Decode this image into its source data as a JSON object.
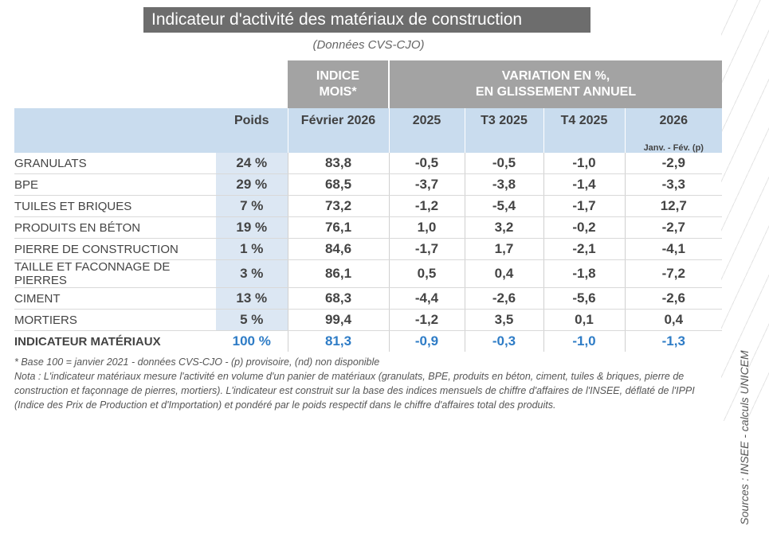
{
  "title": "Indicateur d'activité des matériaux de construction",
  "subtitle": "(Données CVS-CJO)",
  "source": "Sources : INSEE - calculs UNICEM",
  "header": {
    "indice_line1": "INDICE",
    "indice_line2": "MOIS*",
    "variation_line1": "VARIATION EN %,",
    "variation_line2": "EN GLISSEMENT ANNUEL",
    "col_poids": "Poids",
    "col_mois": "Février 2026",
    "col_2025": "2025",
    "col_t3": "T3 2025",
    "col_t4": "T4 2025",
    "col_2026": "2026",
    "col_2026_sub": "Janv. - Fév. (p)"
  },
  "rows": [
    {
      "label": "GRANULATS",
      "poids": "24 %",
      "indice": "83,8",
      "v2025": "-0,5",
      "t3": "-0,5",
      "t4": "-1,0",
      "v2026": "-2,9"
    },
    {
      "label": "BPE",
      "poids": "29 %",
      "indice": "68,5",
      "v2025": "-3,7",
      "t3": "-3,8",
      "t4": "-1,4",
      "v2026": "-3,3"
    },
    {
      "label": "TUILES ET BRIQUES",
      "poids": "7 %",
      "indice": "73,2",
      "v2025": "-1,2",
      "t3": "-5,4",
      "t4": "-1,7",
      "v2026": "12,7"
    },
    {
      "label": "PRODUITS EN BÉTON",
      "poids": "19 %",
      "indice": "76,1",
      "v2025": "1,0",
      "t3": "3,2",
      "t4": "-0,2",
      "v2026": "-2,7"
    },
    {
      "label": "PIERRE DE CONSTRUCTION",
      "poids": "1 %",
      "indice": "84,6",
      "v2025": "-1,7",
      "t3": "1,7",
      "t4": "-2,1",
      "v2026": "-4,1"
    },
    {
      "label": "TAILLE ET FACONNAGE DE PIERRES",
      "poids": "3 %",
      "indice": "86,1",
      "v2025": "0,5",
      "t3": "0,4",
      "t4": "-1,8",
      "v2026": "-7,2"
    },
    {
      "label": "CIMENT",
      "poids": "13 %",
      "indice": "68,3",
      "v2025": "-4,4",
      "t3": "-2,6",
      "t4": "-5,6",
      "v2026": "-2,6"
    },
    {
      "label": "MORTIERS",
      "poids": "5 %",
      "indice": "99,4",
      "v2025": "-1,2",
      "t3": "3,5",
      "t4": "0,1",
      "v2026": "0,4"
    }
  ],
  "total": {
    "label": "INDICATEUR MATÉRIAUX",
    "poids": "100 %",
    "indice": "81,3",
    "v2025": "-0,9",
    "t3": "-0,3",
    "t4": "-1,0",
    "v2026": "-1,3"
  },
  "notes": {
    "base": "* Base 100 = janvier 2021 - données CVS-CJO - (p) provisoire, (nd) non disponible",
    "nota": "Nota :  L'indicateur matériaux mesure l'activité en volume d'un panier de matériaux (granulats, BPE, produits en béton, ciment, tuiles & briques, pierre de construction et façonnage de pierres, mortiers). L'indicateur est construit sur la base des indices mensuels de chiffre d'affaires de l'INSEE, déflaté de l'IPPI (Indice des Prix de Production et d'Importation) et pondéré par le poids respectif dans le chiffre d'affaires total des produits."
  }
}
